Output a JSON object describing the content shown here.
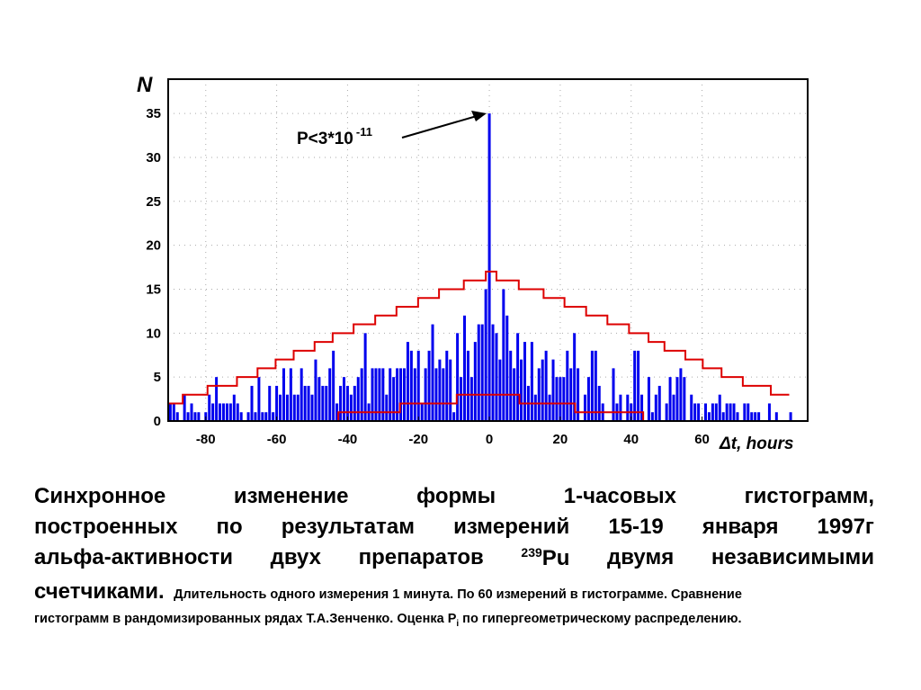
{
  "chart_data": {
    "type": "bar",
    "title": "",
    "xlabel": "Δt, hours",
    "ylabel": "N",
    "xlim": [
      -90.6,
      89.8
    ],
    "ylim": [
      0,
      38.9
    ],
    "x_ticks": [
      -80,
      -60,
      -40,
      -20,
      0,
      20,
      40,
      60
    ],
    "y_ticks": [
      0,
      5,
      10,
      15,
      20,
      25,
      30,
      35
    ],
    "grid": true,
    "bar_series": {
      "name": "histogram differences",
      "color": "#0000ee",
      "x_start": -90,
      "values": [
        2,
        2,
        1,
        0,
        3,
        1,
        2,
        1,
        1,
        0,
        1,
        3,
        2,
        5,
        2,
        2,
        2,
        2,
        3,
        2,
        1,
        0,
        1,
        4,
        1,
        5,
        1,
        1,
        4,
        1,
        4,
        3,
        6,
        3,
        6,
        3,
        3,
        6,
        4,
        4,
        3,
        7,
        5,
        4,
        4,
        6,
        8,
        2,
        4,
        5,
        4,
        3,
        4,
        5,
        6,
        10,
        2,
        6,
        6,
        6,
        6,
        3,
        6,
        5,
        6,
        6,
        6,
        9,
        8,
        6,
        8,
        2,
        6,
        8,
        11,
        6,
        7,
        6,
        8,
        7,
        1,
        10,
        5,
        12,
        8,
        5,
        9,
        11,
        11,
        15,
        35,
        11,
        10,
        7,
        15,
        12,
        8,
        6,
        10,
        7,
        9,
        4,
        9,
        3,
        6,
        7,
        8,
        3,
        7,
        5,
        5,
        5,
        8,
        6,
        10,
        6,
        0,
        3,
        5,
        8,
        8,
        4,
        2,
        0,
        0,
        6,
        2,
        3,
        0,
        3,
        2,
        8,
        8,
        3,
        0,
        5,
        1,
        3,
        4,
        0,
        2,
        5,
        3,
        5,
        6,
        5,
        0,
        3,
        2,
        2,
        0,
        2,
        1,
        2,
        2,
        3,
        1,
        2,
        2,
        2,
        1,
        0,
        2,
        2,
        1,
        1,
        1,
        0,
        0,
        2,
        0,
        1,
        0,
        0,
        0,
        1,
        0,
        0,
        0,
        0
      ]
    },
    "step_series": [
      {
        "name": "upper bound",
        "color": "#dd0000",
        "steps": [
          [
            -90.6,
            -86.5,
            2
          ],
          [
            -86.5,
            -79.5,
            3
          ],
          [
            -79.5,
            -71.2,
            4
          ],
          [
            -71.2,
            -65.4,
            5
          ],
          [
            -65.4,
            -60.3,
            6
          ],
          [
            -60.3,
            -55.2,
            7
          ],
          [
            -55.2,
            -49.3,
            8
          ],
          [
            -49.3,
            -44.2,
            9
          ],
          [
            -44.2,
            -38.3,
            10
          ],
          [
            -38.3,
            -32.2,
            11
          ],
          [
            -32.2,
            -26.2,
            12
          ],
          [
            -26.2,
            -20.1,
            13
          ],
          [
            -20.1,
            -14.2,
            14
          ],
          [
            -14.2,
            -7.2,
            15
          ],
          [
            -7.2,
            -1,
            16
          ],
          [
            -1,
            2,
            17
          ],
          [
            2,
            8.3,
            16
          ],
          [
            8.3,
            15.3,
            15
          ],
          [
            15.3,
            21.2,
            14
          ],
          [
            21.2,
            27.3,
            13
          ],
          [
            27.3,
            33.3,
            12
          ],
          [
            33.3,
            39.4,
            11
          ],
          [
            39.4,
            44.9,
            10
          ],
          [
            44.9,
            49.4,
            9
          ],
          [
            49.4,
            55.3,
            8
          ],
          [
            55.3,
            60.2,
            7
          ],
          [
            60.2,
            65.5,
            6
          ],
          [
            65.5,
            71.5,
            5
          ],
          [
            71.5,
            79.4,
            4
          ],
          [
            79.4,
            84.6,
            3
          ]
        ]
      },
      {
        "name": "lower bound",
        "color": "#dd0000",
        "steps": [
          [
            -42.6,
            -25.2,
            1
          ],
          [
            -25.2,
            -9.2,
            2
          ],
          [
            -9.2,
            8.5,
            3
          ],
          [
            8.5,
            24.2,
            2
          ],
          [
            24.2,
            43.4,
            1
          ]
        ]
      }
    ],
    "annotation": {
      "text": "P<3*10",
      "exponent": "-11",
      "points_to": [
        0,
        35
      ]
    }
  },
  "caption": {
    "line1": [
      "Синхронное",
      "изменение",
      "формы",
      "1-часовых",
      "гистограмм,"
    ],
    "line2": [
      "построенных",
      "по",
      "результатам",
      "измерений",
      "15-19",
      "января",
      "1997г"
    ],
    "line3": [
      "альфа-активности",
      "двух",
      "препаратов",
      "Pu",
      "двумя",
      "независимыми"
    ],
    "line3_sup": "239",
    "line4_big": "счетчиками.",
    "line4_small": "Длительность одного измерения 1 минута. По 60 измерений в гистограмме. Сравнение",
    "line5_a": "гистограмм в рандомизированных рядах Т.А.Зенченко. Оценка P",
    "line5_sub": "i",
    "line5_b": " по гипергеометрическому распределению."
  }
}
